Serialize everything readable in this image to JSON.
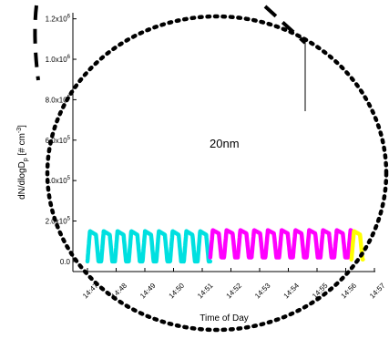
{
  "chart_data": {
    "type": "line",
    "title": "",
    "xlabel": "Time of Day",
    "ylabel": "dN/dlogD_p  [# cm^-3]",
    "xlim": [
      0,
      10.15
    ],
    "ylim": [
      -50000,
      1230000
    ],
    "x_tick_labels": [
      "14:47",
      "14:48",
      "14:49",
      "14:50",
      "14:51",
      "14:52",
      "14:53",
      "14:54",
      "14:55",
      "14:56",
      "14:57"
    ],
    "y_ticks": [
      {
        "value": 0,
        "label": "0.0"
      },
      {
        "value": 200000,
        "label": "2.0x10^5"
      },
      {
        "value": 400000,
        "label": "4.0x10^5"
      },
      {
        "value": 600000,
        "label": "6.0x10^5"
      },
      {
        "value": 800000,
        "label": "8.0x10^5"
      },
      {
        "value": 1000000,
        "label": "1.0x10^6"
      },
      {
        "value": 1200000,
        "label": "1.2x10^6"
      }
    ],
    "annotation": "20nm",
    "grid": false,
    "series": [
      {
        "color": "#00e0e0",
        "t_start": 0,
        "t_end": 4.28,
        "peak": 150000,
        "base": 0,
        "period": 0.48
      },
      {
        "color": "#ff00ff",
        "t_start": 4.28,
        "t_end": 9.2,
        "peak": 155000,
        "base": 20000,
        "period": 0.48
      },
      {
        "color": "#ffff00",
        "t_start": 9.2,
        "t_end": 9.6,
        "peak": 150000,
        "base": 10000,
        "period": 0.48
      }
    ]
  },
  "colors": {
    "cyan_series": "#00e0e0",
    "magenta_series": "#ff00ff",
    "yellow_series": "#ffff00",
    "overlay": "#000000"
  }
}
